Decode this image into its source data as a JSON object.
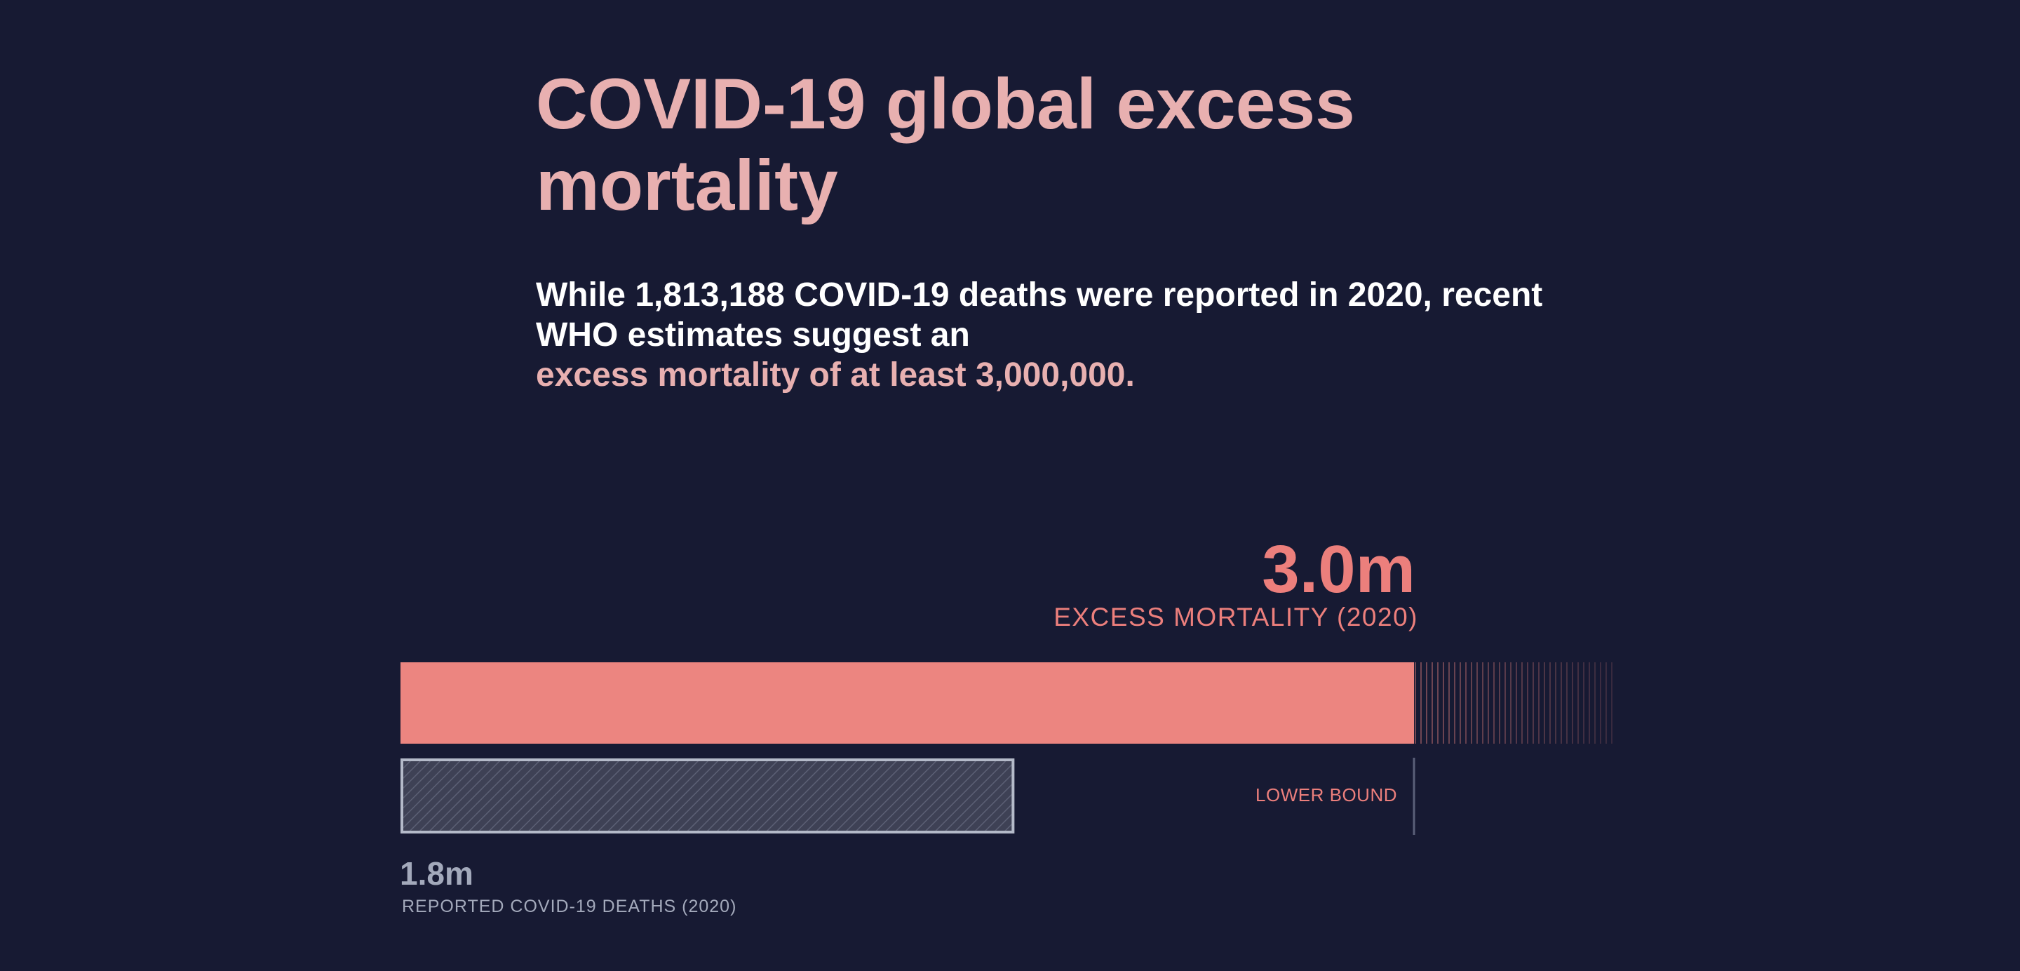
{
  "header": {
    "title": "COVID-19 global excess mortality",
    "subtitle_part1": "While 1,813,188 COVID-19 deaths were reported in 2020, recent WHO estimates suggest an",
    "subtitle_highlight": "excess mortality of at least 3,000,000."
  },
  "chart_data": {
    "type": "bar",
    "orientation": "horizontal",
    "unit": "deaths",
    "xlim": [
      0,
      3600000
    ],
    "series": [
      {
        "key": "excess",
        "value": 3000000,
        "display_value": "3.0m",
        "label": "EXCESS MORTALITY (2020)",
        "uncertainty_to": 3600000,
        "color": "#ec8580"
      },
      {
        "key": "reported",
        "value": 1813188,
        "display_value": "1.8m",
        "label": "REPORTED COVID-19 DEATHS (2020)",
        "color": "#3e4155",
        "border_color": "#b4bac9"
      }
    ],
    "annotations": [
      {
        "text": "LOWER BOUND",
        "at": 3000000
      }
    ]
  },
  "colors": {
    "background": "#171a33",
    "title": "#e8b0b0",
    "accent": "#ec7f7c",
    "muted_text": "#a3a9bb"
  }
}
